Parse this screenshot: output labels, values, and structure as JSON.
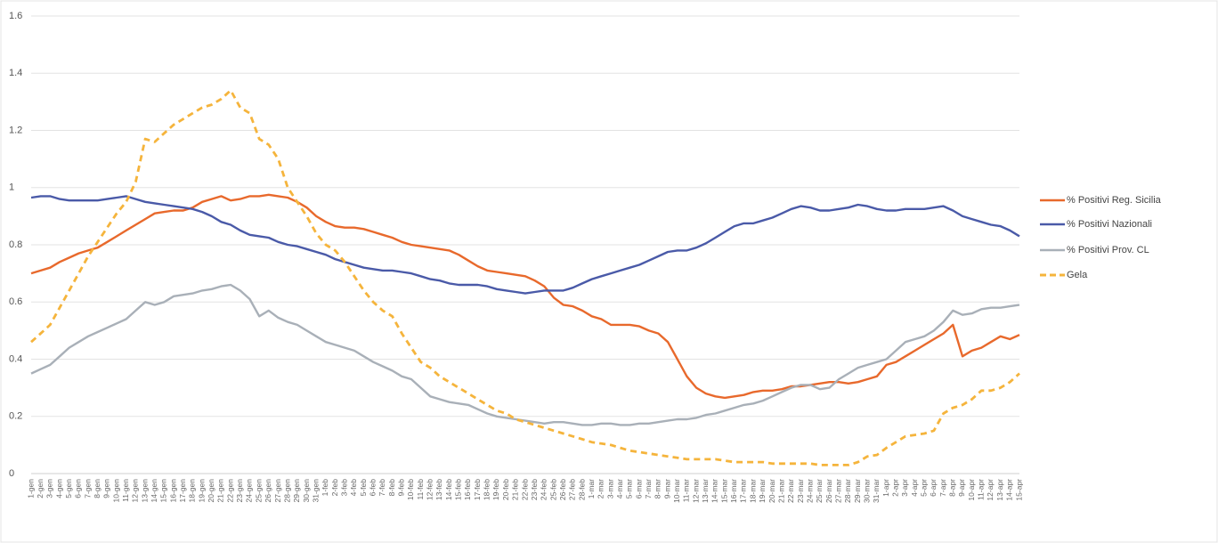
{
  "chart_data": {
    "type": "line",
    "categories": [
      "1-gen",
      "2-gen",
      "3-gen",
      "4-gen",
      "5-gen",
      "6-gen",
      "7-gen",
      "8-gen",
      "9-gen",
      "10-gen",
      "11-gen",
      "12-gen",
      "13-gen",
      "14-gen",
      "15-gen",
      "16-gen",
      "17-gen",
      "18-gen",
      "19-gen",
      "20-gen",
      "21-gen",
      "22-gen",
      "23-gen",
      "24-gen",
      "25-gen",
      "26-gen",
      "27-gen",
      "28-gen",
      "29-gen",
      "30-gen",
      "31-gen",
      "1-feb",
      "2-feb",
      "3-feb",
      "4-feb",
      "5-feb",
      "6-feb",
      "7-feb",
      "8-feb",
      "9-feb",
      "10-feb",
      "11-feb",
      "12-feb",
      "13-feb",
      "14-feb",
      "15-feb",
      "16-feb",
      "17-feb",
      "18-feb",
      "19-feb",
      "20-feb",
      "21-feb",
      "22-feb",
      "23-feb",
      "24-feb",
      "25-feb",
      "26-feb",
      "27-feb",
      "28-feb",
      "1-mar",
      "2-mar",
      "3-mar",
      "4-mar",
      "5-mar",
      "6-mar",
      "7-mar",
      "8-mar",
      "9-mar",
      "10-mar",
      "11-mar",
      "12-mar",
      "13-mar",
      "14-mar",
      "15-mar",
      "16-mar",
      "17-mar",
      "18-mar",
      "19-mar",
      "20-mar",
      "21-mar",
      "22-mar",
      "23-mar",
      "24-mar",
      "25-mar",
      "26-mar",
      "27-mar",
      "28-mar",
      "29-mar",
      "30-mar",
      "31-mar",
      "1-apr",
      "2-apr",
      "3-apr",
      "4-apr",
      "5-apr",
      "6-apr",
      "7-apr",
      "8-apr",
      "9-apr",
      "10-apr",
      "11-apr",
      "12-apr",
      "13-apr",
      "14-apr",
      "15-apr"
    ],
    "series": [
      {
        "name": "% Positivi Reg. Sicilia",
        "color": "#e8692c",
        "dashed": false,
        "values": [
          0.7,
          0.71,
          0.72,
          0.74,
          0.755,
          0.77,
          0.78,
          0.79,
          0.81,
          0.83,
          0.85,
          0.87,
          0.89,
          0.91,
          0.915,
          0.92,
          0.92,
          0.93,
          0.95,
          0.96,
          0.97,
          0.955,
          0.96,
          0.97,
          0.97,
          0.975,
          0.97,
          0.965,
          0.95,
          0.93,
          0.9,
          0.88,
          0.865,
          0.86,
          0.86,
          0.855,
          0.845,
          0.835,
          0.825,
          0.81,
          0.8,
          0.795,
          0.79,
          0.785,
          0.78,
          0.765,
          0.745,
          0.725,
          0.71,
          0.705,
          0.7,
          0.695,
          0.69,
          0.675,
          0.655,
          0.615,
          0.59,
          0.585,
          0.57,
          0.55,
          0.54,
          0.52,
          0.52,
          0.52,
          0.515,
          0.5,
          0.49,
          0.46,
          0.4,
          0.34,
          0.3,
          0.28,
          0.27,
          0.265,
          0.27,
          0.275,
          0.285,
          0.29,
          0.29,
          0.295,
          0.305,
          0.305,
          0.31,
          0.315,
          0.32,
          0.32,
          0.315,
          0.32,
          0.33,
          0.34,
          0.38,
          0.39,
          0.41,
          0.43,
          0.45,
          0.47,
          0.49,
          0.52,
          0.41,
          0.43,
          0.44,
          0.46,
          0.48,
          0.47,
          0.485
        ]
      },
      {
        "name": "% Positivi Nazionali",
        "color": "#4a5aa8",
        "dashed": false,
        "values": [
          0.965,
          0.97,
          0.97,
          0.96,
          0.955,
          0.955,
          0.955,
          0.955,
          0.96,
          0.965,
          0.97,
          0.96,
          0.95,
          0.945,
          0.94,
          0.935,
          0.93,
          0.925,
          0.915,
          0.9,
          0.88,
          0.87,
          0.85,
          0.835,
          0.83,
          0.825,
          0.81,
          0.8,
          0.795,
          0.785,
          0.775,
          0.765,
          0.75,
          0.74,
          0.73,
          0.72,
          0.715,
          0.71,
          0.71,
          0.705,
          0.7,
          0.69,
          0.68,
          0.675,
          0.665,
          0.66,
          0.66,
          0.66,
          0.655,
          0.645,
          0.64,
          0.635,
          0.63,
          0.635,
          0.64,
          0.64,
          0.64,
          0.65,
          0.665,
          0.68,
          0.69,
          0.7,
          0.71,
          0.72,
          0.73,
          0.745,
          0.76,
          0.775,
          0.78,
          0.78,
          0.79,
          0.805,
          0.825,
          0.845,
          0.865,
          0.875,
          0.875,
          0.885,
          0.895,
          0.91,
          0.925,
          0.935,
          0.93,
          0.92,
          0.92,
          0.925,
          0.93,
          0.94,
          0.935,
          0.925,
          0.92,
          0.92,
          0.925,
          0.925,
          0.925,
          0.93,
          0.935,
          0.92,
          0.9,
          0.89,
          0.88,
          0.87,
          0.865,
          0.85,
          0.83
        ]
      },
      {
        "name": "% Positivi Prov. CL",
        "color": "#a9b0b8",
        "dashed": false,
        "values": [
          0.35,
          0.365,
          0.38,
          0.41,
          0.44,
          0.46,
          0.48,
          0.495,
          0.51,
          0.525,
          0.54,
          0.57,
          0.6,
          0.59,
          0.6,
          0.62,
          0.625,
          0.63,
          0.64,
          0.645,
          0.655,
          0.66,
          0.64,
          0.61,
          0.55,
          0.57,
          0.545,
          0.53,
          0.52,
          0.5,
          0.48,
          0.46,
          0.45,
          0.44,
          0.43,
          0.41,
          0.39,
          0.375,
          0.36,
          0.34,
          0.33,
          0.3,
          0.27,
          0.26,
          0.25,
          0.245,
          0.24,
          0.225,
          0.21,
          0.2,
          0.195,
          0.19,
          0.185,
          0.18,
          0.175,
          0.18,
          0.18,
          0.175,
          0.17,
          0.17,
          0.175,
          0.175,
          0.17,
          0.17,
          0.175,
          0.175,
          0.18,
          0.185,
          0.19,
          0.19,
          0.195,
          0.205,
          0.21,
          0.22,
          0.23,
          0.24,
          0.245,
          0.255,
          0.27,
          0.285,
          0.3,
          0.31,
          0.31,
          0.295,
          0.3,
          0.33,
          0.35,
          0.37,
          0.38,
          0.39,
          0.4,
          0.43,
          0.46,
          0.47,
          0.48,
          0.5,
          0.53,
          0.57,
          0.555,
          0.56,
          0.575,
          0.58,
          0.58,
          0.585,
          0.59
        ]
      },
      {
        "name": "Gela",
        "color": "#f5b43c",
        "dashed": true,
        "values": [
          0.46,
          0.49,
          0.52,
          0.58,
          0.64,
          0.7,
          0.76,
          0.81,
          0.86,
          0.91,
          0.95,
          1.02,
          1.17,
          1.16,
          1.19,
          1.22,
          1.24,
          1.26,
          1.28,
          1.29,
          1.31,
          1.34,
          1.28,
          1.26,
          1.17,
          1.15,
          1.1,
          1.0,
          0.95,
          0.9,
          0.84,
          0.8,
          0.78,
          0.74,
          0.69,
          0.64,
          0.6,
          0.57,
          0.55,
          0.49,
          0.44,
          0.39,
          0.37,
          0.34,
          0.32,
          0.3,
          0.28,
          0.26,
          0.24,
          0.22,
          0.21,
          0.19,
          0.18,
          0.17,
          0.16,
          0.15,
          0.14,
          0.13,
          0.12,
          0.11,
          0.105,
          0.1,
          0.09,
          0.08,
          0.075,
          0.07,
          0.065,
          0.06,
          0.055,
          0.05,
          0.05,
          0.05,
          0.05,
          0.045,
          0.04,
          0.04,
          0.04,
          0.04,
          0.035,
          0.035,
          0.035,
          0.035,
          0.035,
          0.03,
          0.03,
          0.03,
          0.03,
          0.04,
          0.06,
          0.065,
          0.09,
          0.11,
          0.13,
          0.135,
          0.14,
          0.15,
          0.21,
          0.23,
          0.24,
          0.26,
          0.29,
          0.29,
          0.3,
          0.32,
          0.35
        ]
      }
    ],
    "ylim": [
      0,
      1.6
    ],
    "yticks": [
      0,
      0.2,
      0.4,
      0.6,
      0.8,
      1,
      1.2,
      1.4,
      1.6
    ],
    "grid": true,
    "legend": "right"
  }
}
